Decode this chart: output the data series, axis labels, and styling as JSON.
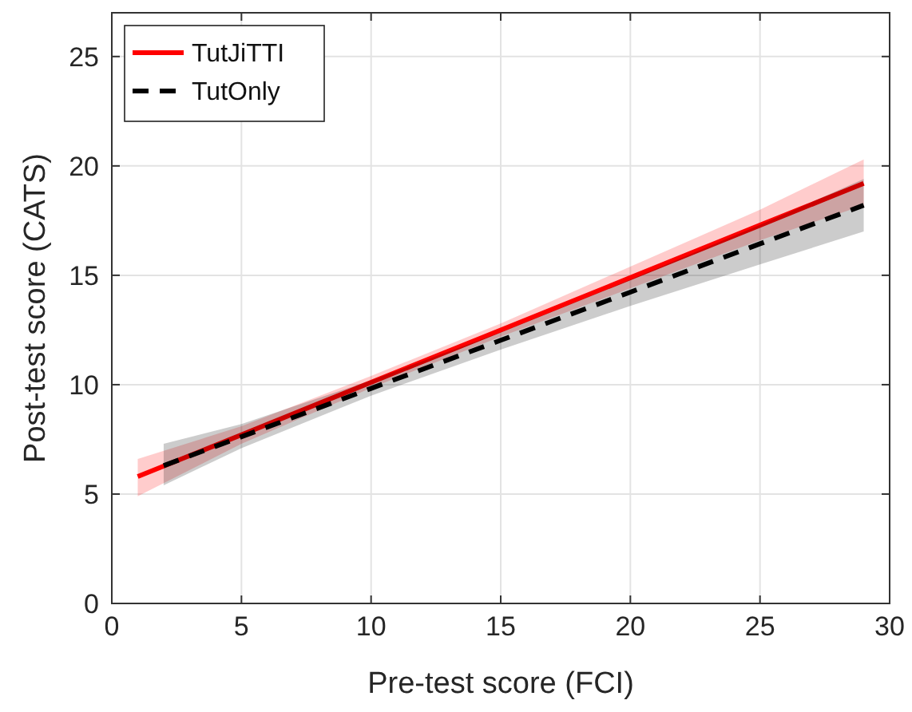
{
  "chart_data": {
    "type": "line",
    "xlabel": "Pre-test score (FCI)",
    "ylabel": "Post-test score (CATS)",
    "xlim": [
      0,
      30
    ],
    "ylim": [
      0,
      27
    ],
    "xticks": [
      0,
      5,
      10,
      15,
      20,
      25,
      30
    ],
    "yticks": [
      0,
      5,
      10,
      15,
      20,
      25
    ],
    "grid": true,
    "legend": "top left",
    "series": [
      {
        "name": "TutJiTTI",
        "color": "#ff0000",
        "line_style": "solid",
        "x": [
          1,
          5,
          10,
          15,
          20,
          25,
          29
        ],
        "values": [
          5.8,
          7.71,
          10.11,
          12.5,
          14.89,
          17.29,
          19.2
        ],
        "lower": [
          4.9,
          7.3,
          9.85,
          12.2,
          14.4,
          16.6,
          18.2
        ],
        "upper": [
          6.6,
          8.1,
          10.4,
          12.8,
          15.4,
          18.0,
          20.3
        ]
      },
      {
        "name": "TutOnly",
        "color": "#000000",
        "line_style": "dashed",
        "x": [
          2,
          5,
          10,
          15,
          20,
          25,
          29
        ],
        "values": [
          6.3,
          7.62,
          9.83,
          12.03,
          14.23,
          16.44,
          18.2
        ],
        "lower": [
          5.4,
          7.1,
          9.5,
          11.6,
          13.6,
          15.5,
          17.0
        ],
        "upper": [
          7.3,
          8.2,
          10.2,
          12.4,
          14.8,
          17.3,
          19.4
        ]
      }
    ]
  }
}
